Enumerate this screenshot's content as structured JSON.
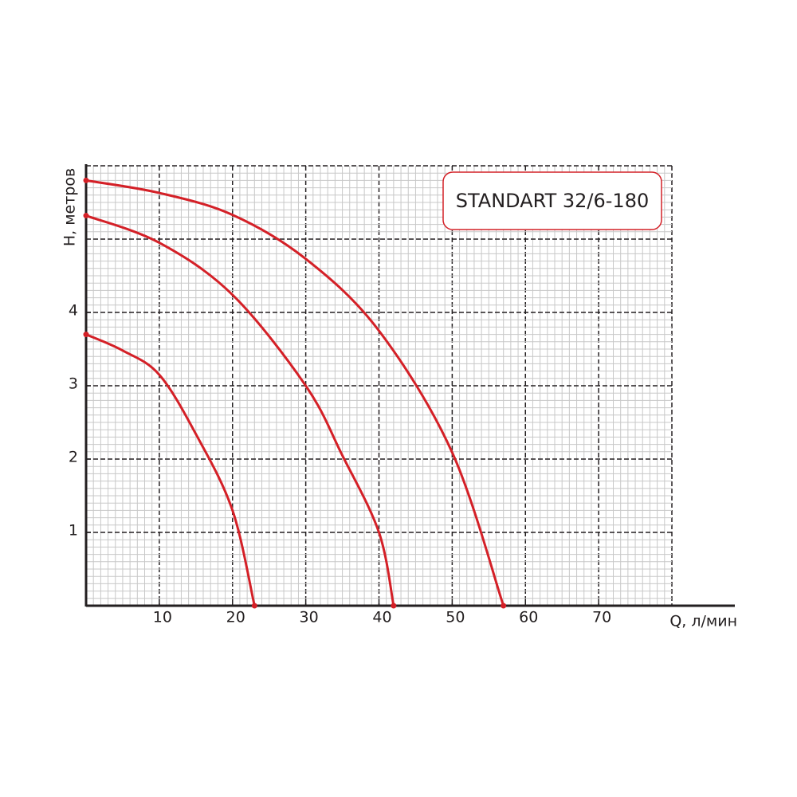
{
  "chart_data": {
    "type": "line",
    "title": "STANDART 32/6-180",
    "x_label": "Q, л/мин",
    "y_label": "H, метров",
    "xlim": [
      0,
      80
    ],
    "ylim": [
      0,
      6
    ],
    "xticks": [
      10,
      20,
      30,
      40,
      50,
      60,
      70
    ],
    "yticks": [
      1,
      2,
      3,
      4
    ],
    "grid": true,
    "series": [
      {
        "color": "#d42027",
        "x": [
          0,
          10,
          20,
          30,
          40,
          50,
          57
        ],
        "values": [
          5.8,
          5.63,
          5.33,
          4.73,
          3.75,
          2.09,
          0
        ]
      },
      {
        "color": "#d42027",
        "x": [
          0,
          10,
          20,
          30,
          35,
          40,
          42
        ],
        "values": [
          5.32,
          4.95,
          4.24,
          3.0,
          2.05,
          1.0,
          0
        ]
      },
      {
        "color": "#d42027",
        "x": [
          0,
          5,
          10,
          15,
          20,
          23
        ],
        "values": [
          3.7,
          3.48,
          3.15,
          2.34,
          1.3,
          0
        ]
      }
    ]
  }
}
